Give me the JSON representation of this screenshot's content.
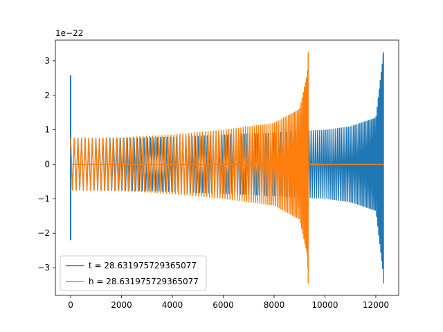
{
  "chart_data": {
    "type": "line",
    "title": "",
    "xlabel": "",
    "ylabel": "",
    "xlim": [
      -600,
      12900
    ],
    "ylim": [
      -3.8,
      3.6
    ],
    "y_scale_label": "1e−22",
    "grid": false,
    "legend_position": "lower-left",
    "x_ticks": [
      0,
      2000,
      4000,
      6000,
      8000,
      10000,
      12000
    ],
    "x_tick_labels": [
      "0",
      "2000",
      "4000",
      "6000",
      "8000",
      "10000",
      "12000"
    ],
    "y_ticks": [
      -3,
      -2,
      -1,
      0,
      1,
      2,
      3
    ],
    "y_tick_labels": [
      "−3",
      "−2",
      "−1",
      "0",
      "1",
      "2",
      "3"
    ],
    "series": [
      {
        "name": "t = 28.631975729365077",
        "color": "#1f77b4",
        "description_points": {
          "x": [
            0,
            2000,
            4000,
            6000,
            8000,
            9300,
            10000,
            11000,
            12000,
            12200,
            12300
          ],
          "envelope": [
            0.76,
            0.76,
            0.8,
            0.86,
            0.92,
            0.98,
            1.0,
            1.1,
            1.35,
            2.6,
            3.25
          ],
          "min_at_end": -3.45,
          "start_spike": {
            "x": 0,
            "max": 2.58,
            "min": -2.2
          }
        }
      },
      {
        "name": "h = 28.631975729365077",
        "color": "#ff7f0e",
        "description_points": {
          "x": [
            0,
            2000,
            4000,
            6000,
            8000,
            9000,
            9300,
            9340
          ],
          "envelope": [
            0.76,
            0.78,
            0.86,
            1.0,
            1.2,
            1.6,
            2.6,
            3.25
          ],
          "min_at_end": -3.45,
          "flat_after": {
            "x_start": 9340,
            "x_end": 12300,
            "value": 0
          }
        }
      }
    ]
  }
}
